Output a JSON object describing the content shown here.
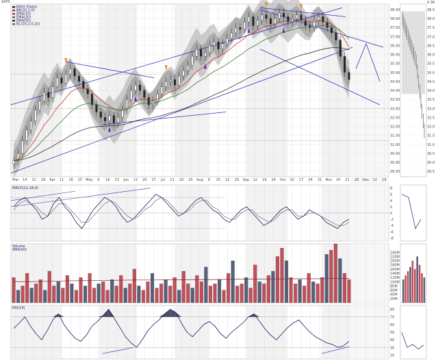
{
  "header": {
    "symbol_line": "$SPX",
    "top_scale_label": "0.36"
  },
  "chart_data": [
    {
      "panel": "price",
      "type": "candlestick",
      "legend": [
        {
          "name": "BIDU (Daily)",
          "color": "#222222"
        },
        {
          "name": "BB(20,2.0)",
          "color": "#555555"
        },
        {
          "name": "EMA(10)",
          "color": "#c0392b"
        },
        {
          "name": "EMA(20)",
          "color": "#2e7d32"
        },
        {
          "name": "EMA(50)",
          "color": "#333333"
        },
        {
          "name": "KC(20,2.0,10)",
          "color": "#666666"
        }
      ],
      "x_labels": [
        "Mar",
        "14",
        "21",
        "28",
        "Apr",
        "11",
        "18",
        "25",
        "May",
        "9",
        "16",
        "23",
        "Jun",
        "13",
        "20",
        "27",
        "Jul",
        "11",
        "18",
        "25",
        "Aug",
        "8",
        "15",
        "22",
        "29",
        "Sep",
        "12",
        "19",
        "26",
        "Oct",
        "10",
        "17",
        "24",
        "31",
        "Nov",
        "14",
        "21",
        "28",
        "Dec",
        "12",
        "19"
      ],
      "y_ticks": [
        38.5,
        38.0,
        37.5,
        37.0,
        36.5,
        36.0,
        35.5,
        35.0,
        34.5,
        34.0,
        33.5,
        33.0,
        32.5,
        32.0,
        31.5,
        31.0,
        30.5,
        30.0,
        29.5
      ],
      "ylim": [
        29.2,
        38.8
      ],
      "close": [
        30.1,
        30.5,
        31.2,
        31.8,
        32.3,
        32.9,
        33.4,
        33.9,
        33.6,
        34.2,
        34.7,
        34.4,
        34.9,
        35.2,
        34.8,
        34.5,
        34.1,
        33.8,
        33.2,
        32.8,
        32.5,
        32.3,
        32.6,
        32.2,
        32.5,
        32.9,
        33.5,
        34.0,
        34.3,
        34.0,
        33.6,
        33.2,
        33.4,
        33.8,
        34.2,
        34.5,
        34.6,
        34.3,
        34.8,
        35.1,
        35.4,
        35.9,
        36.3,
        35.9,
        36.1,
        36.5,
        36.7,
        36.3,
        36.6,
        36.9,
        37.2,
        37.5,
        37.4,
        37.8,
        38.1,
        37.6,
        37.9,
        38.2,
        38.0,
        37.7,
        38.0,
        38.3,
        38.1,
        37.8,
        38.0,
        38.2,
        37.9,
        37.6,
        37.5,
        37.9,
        38.1,
        37.8,
        37.5,
        37.2,
        36.8,
        35.9,
        35.0,
        34.6
      ],
      "legend_placement": "top-left"
    },
    {
      "panel": "macd",
      "type": "line",
      "series": [
        {
          "name": "MACD(12,26,9)",
          "values": [
            2,
            4,
            5,
            3,
            1,
            -2,
            -1,
            3,
            5,
            2,
            0,
            -3,
            -5,
            -2,
            1,
            3,
            5,
            4,
            2,
            -1,
            -3,
            -2,
            0,
            2,
            4,
            6,
            5,
            3,
            1,
            -1,
            0,
            2,
            4,
            5,
            3,
            1,
            0,
            -2,
            -3,
            -1,
            1,
            2,
            0,
            -2,
            -4,
            -3,
            -1,
            1,
            2,
            0,
            -2,
            -1,
            1,
            0,
            -1,
            -3,
            -4,
            -5,
            -3,
            -2
          ]
        },
        {
          "name": "Signal",
          "values": [
            1,
            3,
            4,
            3,
            2,
            0,
            -1,
            1,
            3,
            3,
            1,
            -1,
            -3,
            -3,
            -1,
            1,
            3,
            4,
            3,
            1,
            -1,
            -2,
            -1,
            1,
            2,
            4,
            5,
            4,
            2,
            0,
            0,
            1,
            3,
            4,
            4,
            2,
            1,
            -1,
            -2,
            -2,
            0,
            1,
            1,
            -1,
            -2,
            -3,
            -2,
            0,
            1,
            1,
            -1,
            -1,
            0,
            0,
            -1,
            -2,
            -3,
            -4,
            -4,
            -3
          ]
        }
      ],
      "y_ticks": [
        8,
        6,
        4,
        2,
        0,
        -2,
        -4,
        -6,
        -8
      ],
      "ylim": [
        -9,
        9
      ]
    },
    {
      "panel": "volume",
      "type": "bar",
      "series": [
        {
          "name": "Volume",
          "values": [
            120,
            60,
            80,
            140,
            70,
            90,
            110,
            60,
            150,
            80,
            100,
            70,
            130,
            90,
            60,
            120,
            80,
            140,
            70,
            90,
            100,
            60,
            110,
            80,
            130,
            70,
            90,
            160,
            80,
            60,
            100,
            140,
            70,
            90,
            110,
            80,
            120,
            60,
            150,
            90,
            70,
            130,
            100,
            170,
            80,
            90,
            110,
            60,
            140,
            200,
            80,
            90,
            120,
            70,
            180,
            100,
            90,
            130,
            150,
            220,
            260,
            200,
            120,
            90,
            110,
            80,
            140,
            100,
            90,
            120,
            230,
            250,
            280,
            210,
            140,
            110
          ]
        },
        {
          "name": "SMA(50)",
          "values": [
            100,
            100,
            102,
            104,
            105,
            106,
            107,
            108,
            108,
            109,
            110,
            110,
            111,
            112,
            112,
            113,
            114,
            114,
            115,
            116
          ]
        }
      ],
      "y_ticks": [
        "240M",
        "220M",
        "200M",
        "180M",
        "160M",
        "140M",
        "120M",
        "100M",
        "80M",
        "60M",
        "40M",
        "20M"
      ],
      "legend_placement": "top-left"
    },
    {
      "panel": "rsi",
      "type": "line",
      "series": [
        {
          "name": "RSI(14)",
          "values": [
            55,
            62,
            70,
            58,
            48,
            40,
            52,
            66,
            74,
            60,
            50,
            42,
            38,
            46,
            58,
            64,
            72,
            80,
            68,
            56,
            44,
            36,
            30,
            40,
            52,
            60,
            66,
            74,
            80,
            76,
            62,
            50,
            44,
            52,
            60,
            64,
            58,
            48,
            42,
            50,
            56,
            62,
            70,
            74,
            64,
            54,
            46,
            40,
            48,
            56,
            62,
            66,
            58,
            50,
            44,
            40,
            36,
            34,
            30,
            32,
            38
          ]
        }
      ],
      "y_ticks": [
        80,
        70,
        60,
        50,
        40,
        30,
        20
      ],
      "ylim": [
        15,
        85
      ]
    }
  ]
}
